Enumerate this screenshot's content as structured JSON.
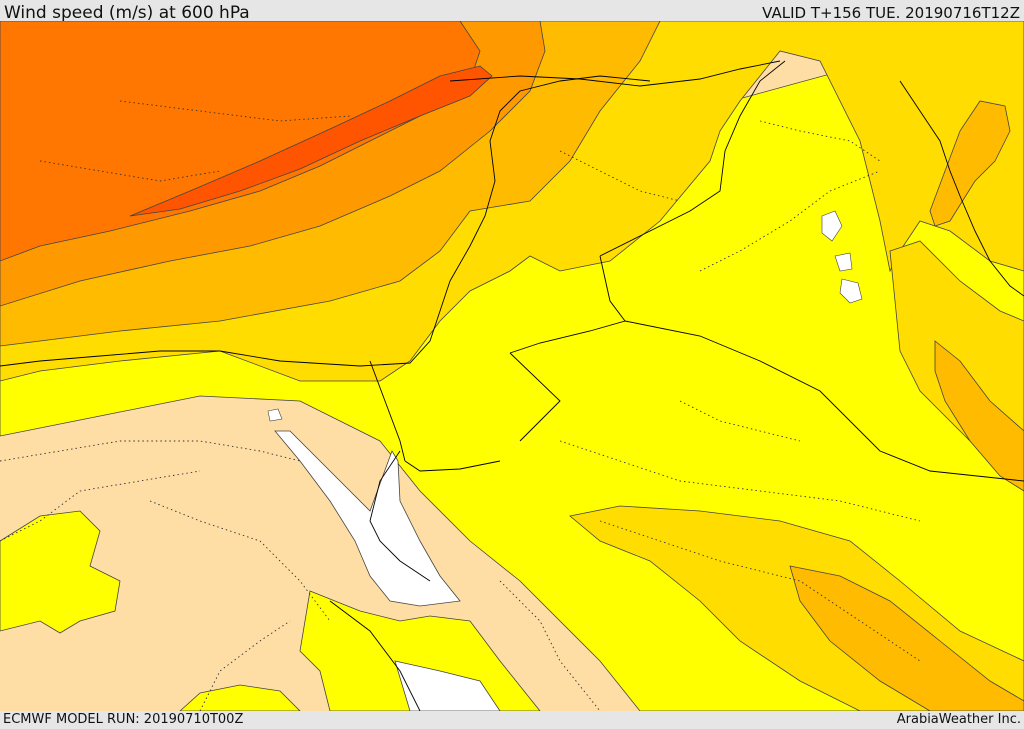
{
  "header": {
    "title": "Wind speed (m/s) at 600 hPa",
    "valid": "VALID T+156 TUE. 20190716T12Z"
  },
  "footer": {
    "model_run": "ECMWF MODEL RUN: 20190710T00Z",
    "credit": "ArabiaWeather Inc."
  },
  "map": {
    "variable": "wind speed",
    "units": "m/s",
    "level": "600 hPa",
    "colors": {
      "calm": "#ffdea6",
      "light": "#ffff00",
      "moderate": "#ffdd00",
      "fresh": "#ffbb00",
      "strong": "#ff9900",
      "very_strong": "#ff7700",
      "jet_core": "#ff5500",
      "sea_gap": "#ffffff"
    }
  }
}
